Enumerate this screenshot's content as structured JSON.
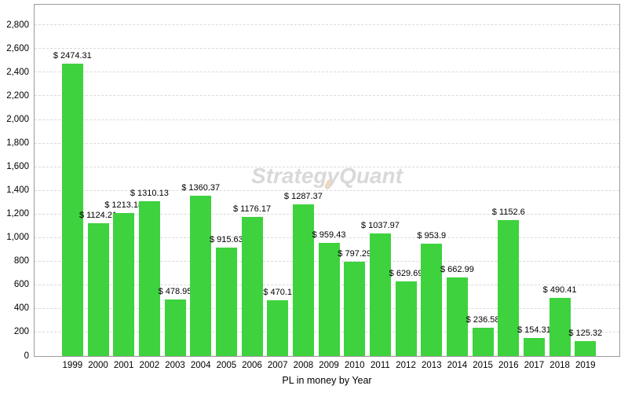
{
  "chart_data": {
    "type": "bar",
    "title": "",
    "xlabel": "PL in money by Year",
    "ylabel": "",
    "categories": [
      "1999",
      "2000",
      "2001",
      "2002",
      "2003",
      "2004",
      "2005",
      "2006",
      "2007",
      "2008",
      "2009",
      "2010",
      "2011",
      "2012",
      "2013",
      "2014",
      "2015",
      "2016",
      "2017",
      "2018",
      "2019"
    ],
    "values": [
      2474.31,
      1124.21,
      1213.18,
      1310.13,
      478.95,
      1360.37,
      915.63,
      1176.17,
      470.1,
      1287.37,
      959.43,
      797.29,
      1037.97,
      629.69,
      953.9,
      662.99,
      236.58,
      1152.6,
      154.31,
      490.41,
      125.32
    ],
    "value_label_prefix": "$ ",
    "y_tick_labels": [
      "0",
      "200",
      "400",
      "600",
      "800",
      "1,000",
      "1,200",
      "1,400",
      "1,600",
      "1,800",
      "2,000",
      "2,200",
      "2,400",
      "2,600",
      "2,800"
    ],
    "ylim": [
      0,
      2975
    ],
    "grid": "horizontal-dashed",
    "legend": "none",
    "watermark": "StrategyQuant",
    "colors": {
      "bar": "#3ed23e",
      "grid": "#d9d9d9",
      "plot_border": "#9c9c9c",
      "watermark": "#d9d9d9",
      "watermark_accent": "#f3d8b4",
      "text": "#000000"
    }
  }
}
